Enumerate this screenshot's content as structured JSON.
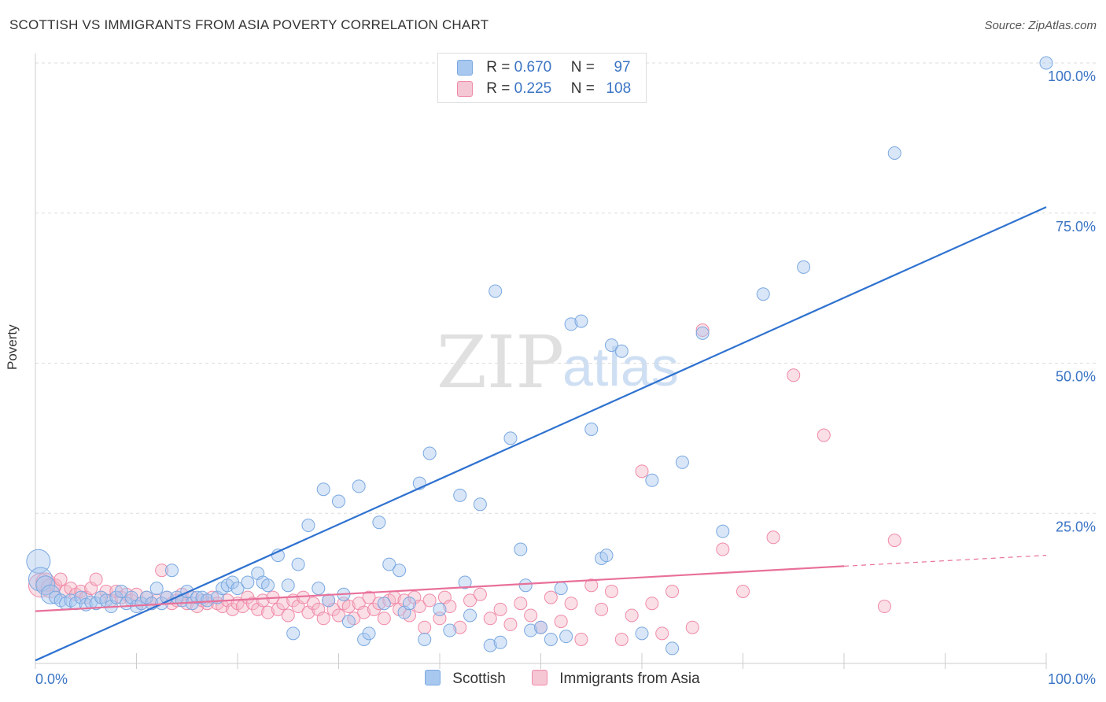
{
  "title": "SCOTTISH VS IMMIGRANTS FROM ASIA POVERTY CORRELATION CHART",
  "source": "Source: ZipAtlas.com",
  "watermark": {
    "zip": "ZIP",
    "atlas": "atlas"
  },
  "legend": {
    "rows": [
      {
        "r_label": "R =",
        "r_value": "0.670",
        "n_label": "N =",
        "n_value": "97",
        "color": "#a8c8f0"
      },
      {
        "r_label": "R =",
        "r_value": "0.225",
        "n_label": "N =",
        "n_value": "108",
        "color": "#f5b8c8"
      }
    ]
  },
  "bottom_legend": [
    {
      "label": "Scottish",
      "color": "#a8c8f0"
    },
    {
      "label": "Immigrants from Asia",
      "color": "#f5b8c8"
    }
  ],
  "chart_data": {
    "type": "scatter",
    "title": "SCOTTISH VS IMMIGRANTS FROM ASIA POVERTY CORRELATION CHART",
    "xlabel": "",
    "ylabel": "Poverty",
    "xlim": [
      0,
      100
    ],
    "ylim": [
      0,
      100
    ],
    "x_tick_labels": [
      "0.0%",
      "100.0%"
    ],
    "y_tick_labels": [
      {
        "value": 100,
        "label": "100.0%"
      },
      {
        "value": 75,
        "label": "75.0%"
      },
      {
        "value": 50,
        "label": "50.0%"
      },
      {
        "value": 25,
        "label": "25.0%"
      }
    ],
    "series": [
      {
        "name": "Scottish",
        "color": "#7aa8e0",
        "fill": "#a8c8f0",
        "line_color": "#2f72d0",
        "trend": {
          "x": [
            0,
            100
          ],
          "y": [
            0.5,
            76
          ]
        },
        "points": [
          [
            0.3,
            17
          ],
          [
            0.5,
            14
          ],
          [
            1,
            13
          ],
          [
            1.5,
            11.5
          ],
          [
            2,
            11
          ],
          [
            2.5,
            10.5
          ],
          [
            3,
            10
          ],
          [
            3.5,
            10.5
          ],
          [
            4,
            10
          ],
          [
            4.5,
            11
          ],
          [
            5,
            9.8
          ],
          [
            5.5,
            10.2
          ],
          [
            6,
            10
          ],
          [
            6.5,
            11
          ],
          [
            7,
            10.5
          ],
          [
            7.5,
            9.5
          ],
          [
            8,
            11
          ],
          [
            8.5,
            12
          ],
          [
            9,
            10
          ],
          [
            9.5,
            11
          ],
          [
            10,
            9.5
          ],
          [
            10.5,
            10
          ],
          [
            11,
            11
          ],
          [
            11.5,
            10
          ],
          [
            12,
            12.5
          ],
          [
            12.5,
            10
          ],
          [
            13,
            11
          ],
          [
            13.5,
            15.5
          ],
          [
            14,
            11
          ],
          [
            14.5,
            10.5
          ],
          [
            15,
            12
          ],
          [
            15.5,
            10
          ],
          [
            16,
            11
          ],
          [
            16.5,
            11
          ],
          [
            17,
            10.5
          ],
          [
            18,
            11
          ],
          [
            18.5,
            12.5
          ],
          [
            19,
            13
          ],
          [
            19.5,
            13.5
          ],
          [
            20,
            12.5
          ],
          [
            21,
            13.5
          ],
          [
            22,
            15
          ],
          [
            22.5,
            13.5
          ],
          [
            23,
            13
          ],
          [
            24,
            18
          ],
          [
            25,
            13
          ],
          [
            25.5,
            5
          ],
          [
            26,
            16.5
          ],
          [
            27,
            23
          ],
          [
            28,
            12.5
          ],
          [
            28.5,
            29
          ],
          [
            29,
            10.5
          ],
          [
            30,
            27
          ],
          [
            30.5,
            11.5
          ],
          [
            31,
            7
          ],
          [
            32,
            29.5
          ],
          [
            32.5,
            4
          ],
          [
            33,
            5
          ],
          [
            34,
            23.5
          ],
          [
            34.5,
            10
          ],
          [
            35,
            16.5
          ],
          [
            36,
            15.5
          ],
          [
            36.5,
            8.5
          ],
          [
            37,
            10
          ],
          [
            38,
            30
          ],
          [
            38.5,
            4
          ],
          [
            39,
            35
          ],
          [
            40,
            9
          ],
          [
            41,
            5.5
          ],
          [
            42,
            28
          ],
          [
            42.5,
            13.5
          ],
          [
            43,
            8
          ],
          [
            44,
            26.5
          ],
          [
            45,
            3
          ],
          [
            45.5,
            62
          ],
          [
            46,
            3.5
          ],
          [
            47,
            37.5
          ],
          [
            48,
            19
          ],
          [
            48.5,
            13
          ],
          [
            49,
            5.5
          ],
          [
            50,
            6
          ],
          [
            51,
            4
          ],
          [
            52,
            12.5
          ],
          [
            52.5,
            4.5
          ],
          [
            53,
            56.5
          ],
          [
            54,
            57
          ],
          [
            55,
            39
          ],
          [
            56,
            17.5
          ],
          [
            56.5,
            18
          ],
          [
            57,
            53
          ],
          [
            58,
            52
          ],
          [
            60,
            5
          ],
          [
            61,
            30.5
          ],
          [
            63,
            2.5
          ],
          [
            64,
            33.5
          ],
          [
            66,
            55
          ],
          [
            68,
            22
          ],
          [
            72,
            61.5
          ],
          [
            76,
            66
          ],
          [
            85,
            85
          ],
          [
            100,
            100
          ]
        ]
      },
      {
        "name": "Immigrants from Asia",
        "color": "#f08aa8",
        "fill": "#f5b8c8",
        "line_color": "#e8709a",
        "trend": {
          "x": [
            0,
            80
          ],
          "y": [
            8.7,
            16.2
          ]
        },
        "trend_dashed": {
          "x": [
            80,
            100
          ],
          "y": [
            16.2,
            18
          ]
        },
        "points": [
          [
            0.5,
            13
          ],
          [
            1,
            13.5
          ],
          [
            1.5,
            12.5
          ],
          [
            2,
            13
          ],
          [
            2.5,
            14
          ],
          [
            3,
            12
          ],
          [
            3.5,
            12.5
          ],
          [
            4,
            11.5
          ],
          [
            4.5,
            12
          ],
          [
            5,
            11
          ],
          [
            5.5,
            12.5
          ],
          [
            6,
            14
          ],
          [
            6.5,
            11
          ],
          [
            7,
            12
          ],
          [
            7.5,
            10.5
          ],
          [
            8,
            12
          ],
          [
            8.5,
            11
          ],
          [
            9,
            11.5
          ],
          [
            9.5,
            10.5
          ],
          [
            10,
            11.5
          ],
          [
            10.5,
            10
          ],
          [
            11,
            11
          ],
          [
            11.5,
            10
          ],
          [
            12,
            10.5
          ],
          [
            12.5,
            15.5
          ],
          [
            13,
            11
          ],
          [
            13.5,
            10
          ],
          [
            14,
            10.5
          ],
          [
            14.5,
            11.5
          ],
          [
            15,
            10
          ],
          [
            15.5,
            11
          ],
          [
            16,
            9.5
          ],
          [
            16.5,
            10.5
          ],
          [
            17,
            10
          ],
          [
            17.5,
            11
          ],
          [
            18,
            10
          ],
          [
            18.5,
            9.5
          ],
          [
            19,
            10.5
          ],
          [
            19.5,
            9
          ],
          [
            20,
            10
          ],
          [
            20.5,
            9.5
          ],
          [
            21,
            11
          ],
          [
            21.5,
            10
          ],
          [
            22,
            9
          ],
          [
            22.5,
            10.5
          ],
          [
            23,
            8.5
          ],
          [
            23.5,
            11
          ],
          [
            24,
            9
          ],
          [
            24.5,
            10
          ],
          [
            25,
            8
          ],
          [
            25.5,
            10.5
          ],
          [
            26,
            9.5
          ],
          [
            26.5,
            11
          ],
          [
            27,
            8.5
          ],
          [
            27.5,
            10
          ],
          [
            28,
            9
          ],
          [
            28.5,
            7.5
          ],
          [
            29,
            10.5
          ],
          [
            29.5,
            9
          ],
          [
            30,
            8
          ],
          [
            30.5,
            10
          ],
          [
            31,
            9.5
          ],
          [
            31.5,
            7.5
          ],
          [
            32,
            10
          ],
          [
            32.5,
            8.5
          ],
          [
            33,
            11
          ],
          [
            33.5,
            9
          ],
          [
            34,
            10
          ],
          [
            34.5,
            7.5
          ],
          [
            35,
            10.5
          ],
          [
            35.5,
            11
          ],
          [
            36,
            9
          ],
          [
            36.5,
            10.5
          ],
          [
            37,
            8
          ],
          [
            37.5,
            11
          ],
          [
            38,
            9.5
          ],
          [
            38.5,
            6
          ],
          [
            39,
            10.5
          ],
          [
            40,
            7.5
          ],
          [
            40.5,
            11
          ],
          [
            41,
            9.5
          ],
          [
            42,
            6
          ],
          [
            43,
            10.5
          ],
          [
            44,
            11.5
          ],
          [
            45,
            7.5
          ],
          [
            46,
            9
          ],
          [
            47,
            6.5
          ],
          [
            48,
            10
          ],
          [
            49,
            8
          ],
          [
            50,
            6
          ],
          [
            51,
            11
          ],
          [
            52,
            7
          ],
          [
            53,
            10
          ],
          [
            54,
            4
          ],
          [
            55,
            13
          ],
          [
            56,
            9
          ],
          [
            57,
            12
          ],
          [
            58,
            4
          ],
          [
            59,
            8
          ],
          [
            60,
            32
          ],
          [
            61,
            10
          ],
          [
            62,
            5
          ],
          [
            63,
            12
          ],
          [
            65,
            6
          ],
          [
            66,
            55.5
          ],
          [
            68,
            19
          ],
          [
            70,
            12
          ],
          [
            73,
            21
          ],
          [
            75,
            48
          ],
          [
            78,
            38
          ],
          [
            84,
            9.5
          ],
          [
            85,
            20.5
          ]
        ]
      }
    ]
  }
}
